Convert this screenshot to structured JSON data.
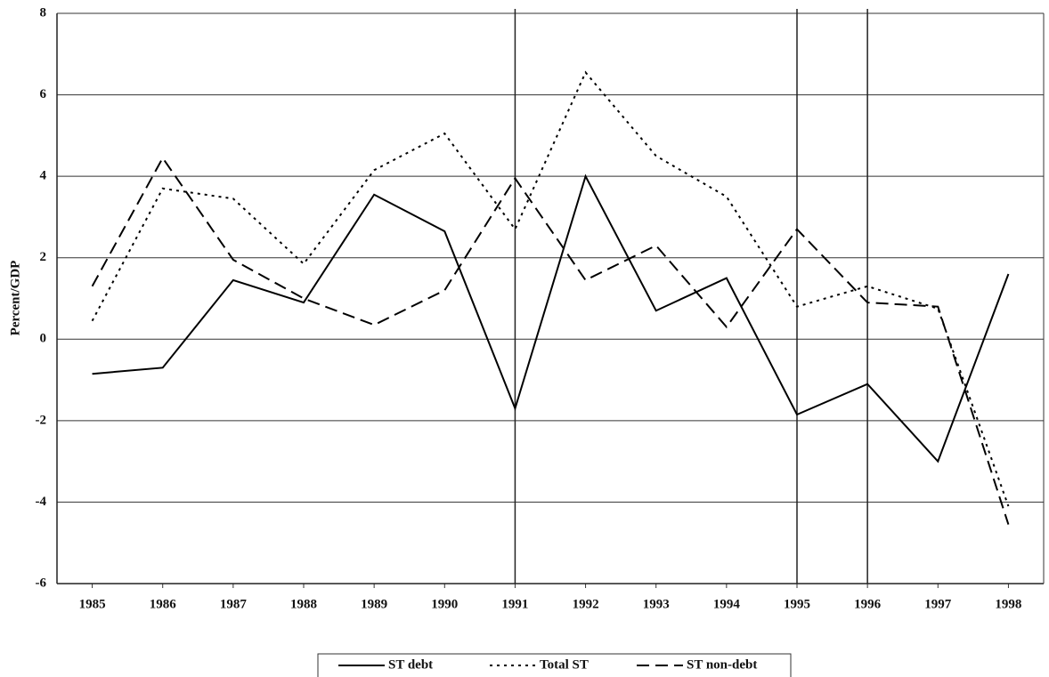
{
  "chart_data": {
    "type": "line",
    "y_label": "Percent/GDP",
    "x": [
      1985,
      1986,
      1987,
      1988,
      1989,
      1990,
      1991,
      1992,
      1993,
      1994,
      1995,
      1996,
      1997,
      1998
    ],
    "xlim": [
      1984.5,
      1998.5
    ],
    "xticks": [
      1985,
      1986,
      1987,
      1988,
      1989,
      1990,
      1991,
      1992,
      1993,
      1994,
      1995,
      1996,
      1997,
      1998
    ],
    "ylim": [
      -6,
      8
    ],
    "yticks": [
      -6,
      -4,
      -2,
      0,
      2,
      4,
      6,
      8
    ],
    "grid": true,
    "vertical_lines": [
      1991,
      1995,
      1996
    ],
    "legend": "bottom",
    "series": [
      {
        "name": "ST debt",
        "color": "#000000",
        "dash": "solid",
        "values": [
          -0.85,
          -0.7,
          1.45,
          0.9,
          3.55,
          2.65,
          -1.7,
          4.0,
          0.7,
          1.5,
          -1.85,
          -1.1,
          -3.0,
          1.6
        ]
      },
      {
        "name": "Total ST",
        "color": "#000000",
        "dash": "dotted",
        "values": [
          0.45,
          3.7,
          3.45,
          1.85,
          4.15,
          5.05,
          2.7,
          6.55,
          4.5,
          3.5,
          0.8,
          1.3,
          0.75,
          -4.1
        ]
      },
      {
        "name": "ST non-debt",
        "color": "#000000",
        "dash": "dashed",
        "values": [
          1.3,
          4.45,
          1.95,
          1.0,
          0.35,
          1.2,
          3.95,
          1.45,
          2.3,
          0.3,
          2.7,
          0.9,
          0.8,
          -4.55
        ]
      }
    ]
  }
}
